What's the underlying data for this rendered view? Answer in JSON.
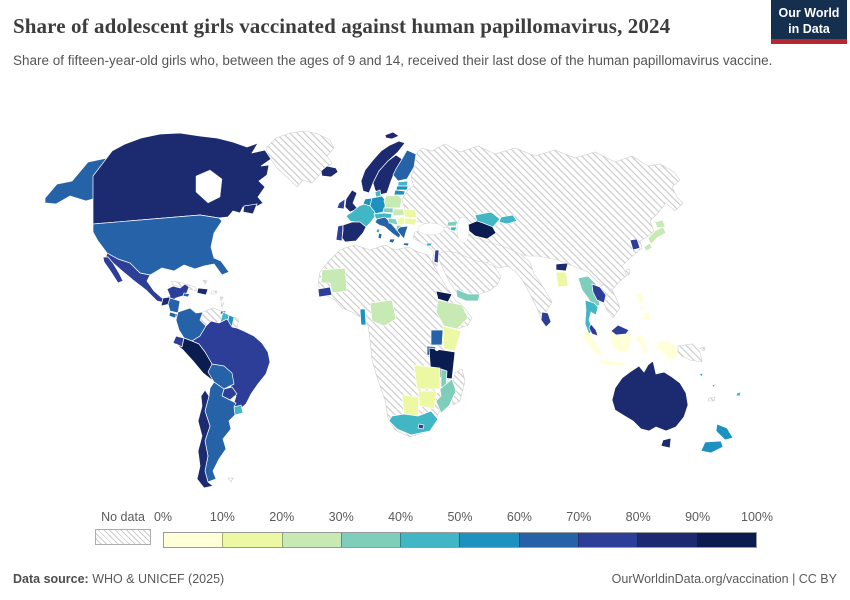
{
  "header": {
    "title": "Share of adolescent girls vaccinated against human papillomavirus, 2024",
    "subtitle": "Share of fifteen-year-old girls who, between the ages of 9 and 14, received their last dose of the human papillomavirus vaccine.",
    "logo": {
      "line1": "Our World",
      "line2": "in Data"
    }
  },
  "legend": {
    "no_data_label": "No data",
    "tick_labels": [
      "0%",
      "10%",
      "20%",
      "30%",
      "40%",
      "50%",
      "60%",
      "70%",
      "80%",
      "90%",
      "100%"
    ],
    "bins": [
      {
        "range": "0-10%",
        "color": "#ffffd9"
      },
      {
        "range": "10-20%",
        "color": "#edf8a3"
      },
      {
        "range": "20-30%",
        "color": "#c7e9b4"
      },
      {
        "range": "30-40%",
        "color": "#7fcdbb"
      },
      {
        "range": "40-50%",
        "color": "#41b6c4"
      },
      {
        "range": "50-60%",
        "color": "#1d91c0"
      },
      {
        "range": "60-70%",
        "color": "#2562a8"
      },
      {
        "range": "70-80%",
        "color": "#2c3e98"
      },
      {
        "range": "80-90%",
        "color": "#1c2b70"
      },
      {
        "range": "90-100%",
        "color": "#0a1c50"
      }
    ]
  },
  "footer": {
    "source_label": "Data source:",
    "source_value": "WHO & UNICEF (2025)",
    "right_text": "OurWorldinData.org/vaccination | CC BY"
  },
  "chart_data": {
    "type": "heatmap",
    "subtype": "world-choropleth",
    "title": "Share of adolescent girls vaccinated against human papillomavirus, 2024",
    "unit": "% of fifteen-year-old girls vaccinated (last dose, ages 9-14)",
    "bin_ranges": [
      "0-10%",
      "10-20%",
      "20-30%",
      "30-40%",
      "40-50%",
      "50-60%",
      "60-70%",
      "70-80%",
      "80-90%",
      "90-100%"
    ],
    "countries": {
      "United States": 6,
      "Canada": 8,
      "Mexico": 7,
      "Guatemala": 8,
      "Honduras": 6,
      "Costa Rica": 6,
      "Panama": 8,
      "Dominican Republic": 8,
      "Jamaica": 6,
      "Trinidad and Tobago": 6,
      "Colombia": 6,
      "Guyana": 4,
      "Suriname": 5,
      "Ecuador": 7,
      "Peru": 9,
      "Brazil": 7,
      "Bolivia": 6,
      "Paraguay": 7,
      "Uruguay": 4,
      "Argentina": 6,
      "Chile": 8,
      "Iceland": 8,
      "Ireland": 7,
      "United Kingdom": 8,
      "Norway": 8,
      "Sweden": 8,
      "Finland": 6,
      "Denmark": 4,
      "Estonia": 4,
      "Latvia": 5,
      "Lithuania": 5,
      "Netherlands": 5,
      "Germany": 5,
      "Poland": 2,
      "France": 4,
      "Portugal": 7,
      "Spain": 8,
      "Austria": 4,
      "Czechia": 3,
      "Hungary": 2,
      "Italy": 6,
      "Croatia": 3,
      "Serbia": 1,
      "Romania": 1,
      "Bulgaria": 1,
      "Albania": 3,
      "Greece": 6,
      "Georgia": 3,
      "Armenia": 4,
      "Turkmenistan": 9,
      "Uzbekistan": 4,
      "Kyrgyzstan": 4,
      "Israel": 7,
      "Cyprus": 4,
      "Yemen": 3,
      "Bhutan": 8,
      "Bangladesh": 1,
      "Myanmar": 3,
      "Laos": 7,
      "Thailand": 4,
      "Malaysia": 7,
      "Sri Lanka": 7,
      "South Korea": 7,
      "Japan": 2,
      "Mauritania": 2,
      "Senegal": 7,
      "Nigeria": 2,
      "Togo": 5,
      "Ethiopia": 2,
      "Eritrea": 9,
      "Uganda": 6,
      "Kenya": 1,
      "Rwanda": 6,
      "Tanzania": 9,
      "Zambia": 1,
      "Malawi": 3,
      "Mozambique": 3,
      "Zimbabwe": 1,
      "Botswana": 1,
      "South Africa": 4,
      "Lesotho": 7,
      "Indonesia": 0,
      "Philippines": 0,
      "Australia": 8,
      "New Zealand": 5,
      "Fiji": 4,
      "Solomon Islands": 4,
      "Vanuatu": 4
    },
    "no_data_countries": [
      "Greenland",
      "Cuba",
      "Puerto Rico",
      "Bahamas",
      "Lesser Antilles",
      "Venezuela",
      "French Guiana",
      "Falkland Islands",
      "Russia",
      "Ukraine",
      "Belarus",
      "Kazakhstan",
      "Mongolia",
      "China",
      "Turkey",
      "Syria",
      "Iraq",
      "Iran",
      "Afghanistan",
      "Pakistan",
      "India",
      "Nepal",
      "Saudi Arabia",
      "Egypt",
      "Libya",
      "Algeria",
      "Morocco",
      "Sudan",
      "Somalia",
      "DR Congo",
      "Angola",
      "Namibia",
      "Madagascar",
      "Vietnam",
      "Cambodia",
      "Taiwan",
      "Papua New Guinea",
      "New Caledonia"
    ]
  }
}
